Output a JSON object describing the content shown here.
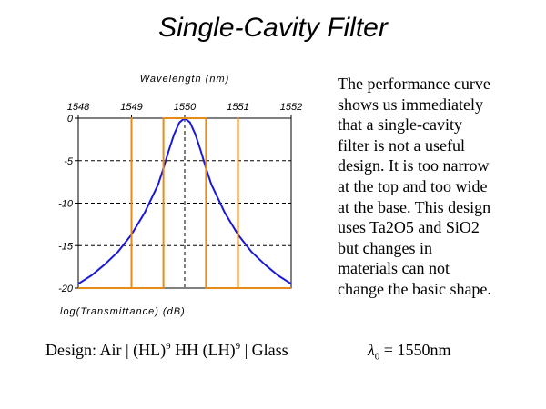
{
  "title": "Single-Cavity Filter",
  "description_lines": [
    "The performance curve",
    "shows us immediately",
    "that a single-cavity",
    "filter is not a useful",
    "design. It is too narrow",
    "at the top and too wide",
    "at the base. This design",
    "uses Ta2O5 and SiO2",
    "but changes in",
    "materials can not",
    "change the basic shape."
  ],
  "design": {
    "prefix": "Design: Air | (HL)",
    "exp1": "9",
    "middle": " HH (LH)",
    "exp2": "9",
    "suffix": " | Glass"
  },
  "lambda": {
    "symbol": "λ",
    "subscript": "0",
    "value": " = 1550nm"
  },
  "chart_data": {
    "type": "line",
    "title": "",
    "xlabel": "Wavelength (nm)",
    "ylabel": "log(Transmittance) (dB)",
    "xlim": [
      1548,
      1552
    ],
    "ylim": [
      -20,
      0
    ],
    "x_ticks": [
      "1548",
      "1549",
      "1550",
      "1551",
      "1552"
    ],
    "y_ticks": [
      "0",
      "-5",
      "-10",
      "-15",
      "-20"
    ],
    "grid": true,
    "x_axis_position": "top",
    "colors": {
      "performance": "#1a1ad6",
      "target": "#e68a1a",
      "grid": "#000000"
    },
    "series": [
      {
        "role": "performance",
        "x": [
          1548.0,
          1548.25,
          1548.5,
          1548.75,
          1549.0,
          1549.25,
          1549.5,
          1549.6,
          1549.7,
          1549.8,
          1549.9,
          1550.0,
          1550.1,
          1550.2,
          1550.3,
          1550.4,
          1550.5,
          1550.75,
          1551.0,
          1551.25,
          1551.5,
          1551.75,
          1552.0
        ],
        "y": [
          -19.5,
          -18.5,
          -17.2,
          -15.7,
          -13.7,
          -11.1,
          -7.8,
          -5.9,
          -3.8,
          -1.9,
          -0.5,
          0.0,
          -0.5,
          -1.9,
          -3.8,
          -5.9,
          -7.8,
          -11.1,
          -13.7,
          -15.7,
          -17.2,
          -18.5,
          -19.5
        ]
      },
      {
        "role": "target",
        "x": [
          1548.0,
          1549.0,
          1549.0,
          1549.0,
          1549.0,
          1549.6,
          1549.6,
          1550.4,
          1550.4,
          1551.0,
          1551.0,
          1551.0,
          1551.0,
          1552.0
        ],
        "y": [
          -20,
          -20,
          0,
          0,
          -20,
          -20,
          0,
          0,
          -20,
          -20,
          0,
          0,
          -20,
          -20
        ]
      }
    ]
  }
}
